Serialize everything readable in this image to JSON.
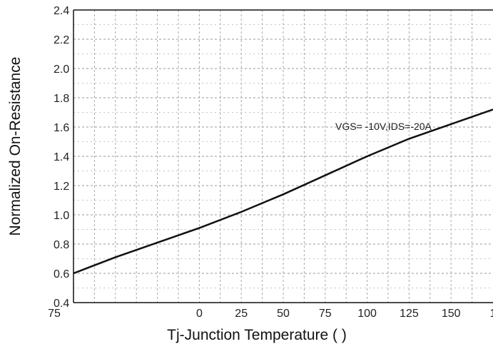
{
  "chart_data": {
    "type": "line",
    "title": "",
    "xlabel": "Tj-Junction Temperature (   )",
    "ylabel": "Normalized On-Resistance",
    "xlim": [
      -75,
      175
    ],
    "ylim": [
      0.4,
      2.4
    ],
    "x_ticks": [
      "75",
      "0",
      "25",
      "50",
      "75",
      "100",
      "125",
      "150",
      "1"
    ],
    "y_ticks": [
      "2.4",
      "2.2",
      "2.0",
      "1.8",
      "1.6",
      "1.4",
      "1.2",
      "1.0",
      "0.8",
      "0.6",
      "0.4"
    ],
    "grid": true,
    "annotation": "VGS= -10V,IDS=-20A",
    "series": [
      {
        "x": [
          -75,
          -50,
          -25,
          0,
          25,
          50,
          75,
          100,
          125,
          150,
          175
        ],
        "y": [
          0.6,
          0.71,
          0.81,
          0.91,
          1.02,
          1.14,
          1.27,
          1.4,
          1.52,
          1.62,
          1.72
        ]
      }
    ]
  }
}
